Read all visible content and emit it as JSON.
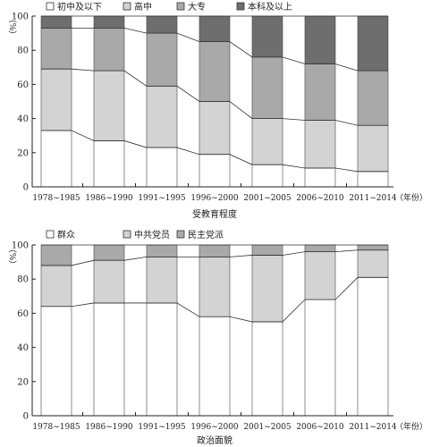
{
  "chart_data": [
    {
      "type": "bar",
      "stacked": true,
      "title": "",
      "xlabel": "受教育程度",
      "ylabel": "（%）",
      "x_unit_label": "（年份）",
      "ylim": [
        0,
        100
      ],
      "yticks": [
        "0",
        "20",
        "40",
        "60",
        "80",
        "100"
      ],
      "grid": false,
      "legend_position": "top",
      "categories": [
        "1978~1985",
        "1986~1990",
        "1991~1995",
        "1996~2000",
        "2001~2005",
        "2006~2010",
        "2011~2014"
      ],
      "series": [
        {
          "name": "初中及以下",
          "color": "#ffffff",
          "values": [
            33,
            27,
            23,
            19,
            13,
            11,
            9
          ]
        },
        {
          "name": "高中",
          "color": "#d3d3d3",
          "values": [
            36,
            41,
            36,
            31,
            27,
            28,
            27
          ]
        },
        {
          "name": "大专",
          "color": "#a9a9a9",
          "values": [
            24,
            25,
            31,
            35,
            36,
            33,
            32
          ]
        },
        {
          "name": "本科及以上",
          "color": "#6e6e6e",
          "values": [
            7,
            7,
            10,
            15,
            24,
            28,
            32
          ]
        }
      ]
    },
    {
      "type": "bar",
      "stacked": true,
      "title": "",
      "xlabel": "政治面貌",
      "ylabel": "（%）",
      "x_unit_label": "（年份）",
      "ylim": [
        0,
        100
      ],
      "yticks": [
        "0",
        "20",
        "40",
        "60",
        "80",
        "100"
      ],
      "grid": false,
      "legend_position": "top",
      "categories": [
        "1978~1985",
        "1986~1990",
        "1991~1995",
        "1996~2000",
        "2001~2005",
        "2006~2010",
        "2011~2014"
      ],
      "series": [
        {
          "name": "群众",
          "color": "#ffffff",
          "values": [
            64,
            66,
            66,
            58,
            55,
            68,
            81
          ]
        },
        {
          "name": "中共党员",
          "color": "#d3d3d3",
          "values": [
            24,
            25,
            27,
            35,
            39,
            28,
            16
          ]
        },
        {
          "name": "民主党派",
          "color": "#a9a9a9",
          "values": [
            12,
            9,
            7,
            7,
            6,
            4,
            3
          ]
        }
      ]
    }
  ]
}
